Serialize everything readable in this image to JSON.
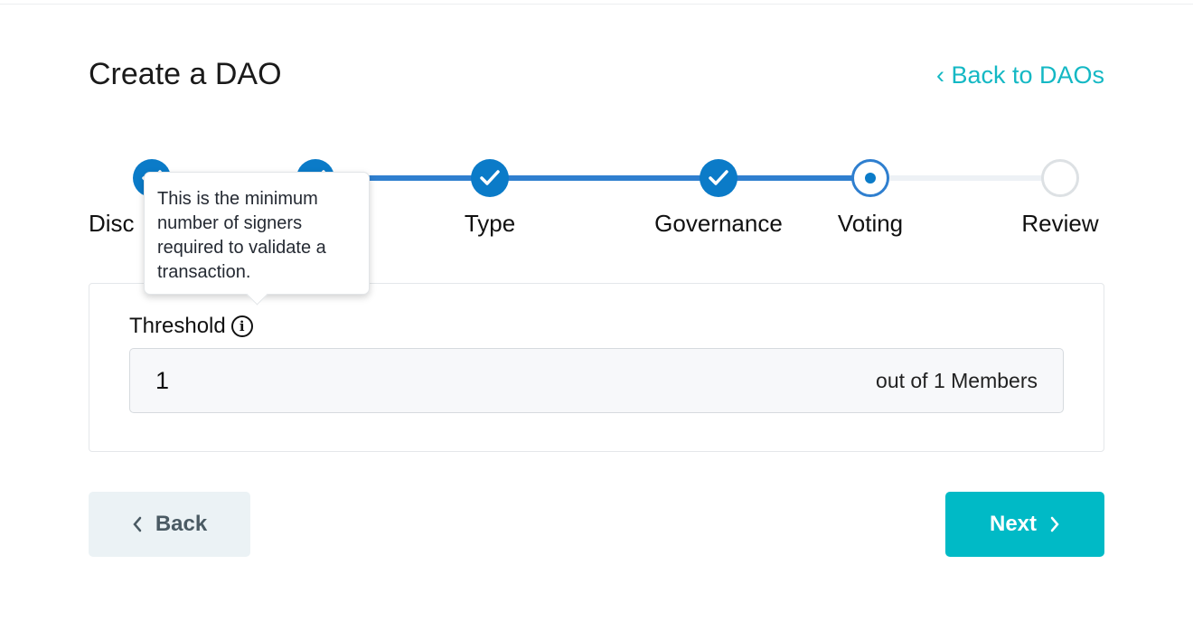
{
  "header": {
    "title": "Create a DAO",
    "back_link": "‹  Back to DAOs"
  },
  "steps": [
    {
      "label": "Disc",
      "status": "done"
    },
    {
      "label": "",
      "status": "done"
    },
    {
      "label": "Type",
      "status": "done"
    },
    {
      "label": "Governance",
      "status": "done"
    },
    {
      "label": "Voting",
      "status": "current"
    },
    {
      "label": "Review",
      "status": "todo"
    }
  ],
  "form": {
    "threshold_label": "Threshold",
    "threshold_value": "1",
    "threshold_suffix": "out of 1 Members"
  },
  "tooltip": {
    "text": "This is the minimum number of signers required to validate a transaction."
  },
  "buttons": {
    "back": "Back",
    "next": "Next"
  },
  "colors": {
    "accent": "#00bac6",
    "step_done": "#0b7bc8",
    "link": "#14b8c4"
  }
}
